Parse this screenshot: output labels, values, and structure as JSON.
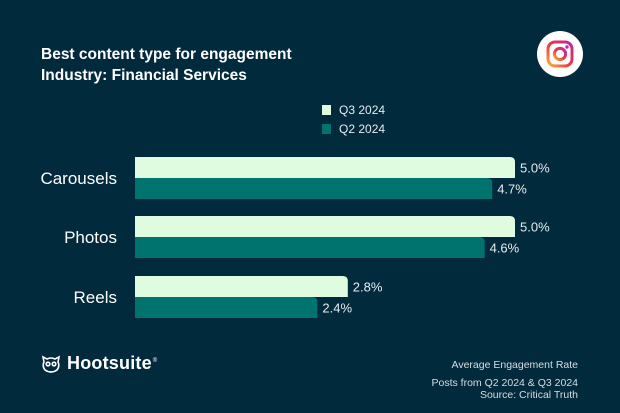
{
  "header": {
    "title": "Best content type for engagement",
    "subtitle": "Industry: Financial Services"
  },
  "platform_icon": "instagram-icon",
  "colors": {
    "background": "#012a3c",
    "q3": "#e0fce0",
    "q2": "#00736e"
  },
  "chart_data": {
    "type": "bar",
    "orientation": "horizontal",
    "title": "Best content type for engagement",
    "subtitle": "Industry: Financial Services",
    "categories": [
      "Carousels",
      "Photos",
      "Reels"
    ],
    "series": [
      {
        "name": "Q3 2024",
        "values": [
          5.0,
          5.0,
          2.8
        ],
        "labels": [
          "5.0%",
          "5.0%",
          "2.8%"
        ]
      },
      {
        "name": "Q2 2024",
        "values": [
          4.7,
          4.6,
          2.4
        ],
        "labels": [
          "4.7%",
          "4.6%",
          "2.4%"
        ]
      }
    ],
    "xlabel": "Average Engagement Rate",
    "ylabel": "",
    "xlim": [
      0,
      5.0
    ],
    "grid": false,
    "legend": "top-center"
  },
  "legend": [
    {
      "label": "Q3 2024"
    },
    {
      "label": "Q2 2024"
    }
  ],
  "footer": {
    "brand": "Hootsuite",
    "brand_mark": "®",
    "line1": "Average Engagement Rate",
    "line2": "Posts from Q2 2024 & Q3 2024",
    "line3": "Source: Critical Truth"
  }
}
